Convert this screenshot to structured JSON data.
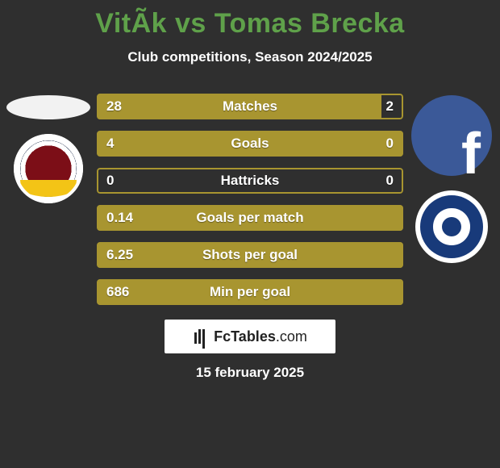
{
  "colors": {
    "background": "#2f2f2f",
    "title": "#5fa14a",
    "text": "#ffffff",
    "bar_fill": "#a89530",
    "bar_empty_border": "#a89530",
    "bar_border_width": 2,
    "brand_bg": "#ffffff",
    "brand_text": "#222222",
    "fb": "#3b5998"
  },
  "title": "VitÃ­k vs Tomas Brecka",
  "subtitle": "Club competitions, Season 2024/2025",
  "left_badge": "sparta",
  "right_badge": "slovacko",
  "stats": {
    "rows": [
      {
        "label": "Matches",
        "left": "28",
        "right": "2",
        "fill_pct": 93
      },
      {
        "label": "Goals",
        "left": "4",
        "right": "0",
        "fill_pct": 100
      },
      {
        "label": "Hattricks",
        "left": "0",
        "right": "0",
        "fill_pct": 0
      },
      {
        "label": "Goals per match",
        "left": "0.14",
        "right": "",
        "fill_pct": 100
      },
      {
        "label": "Shots per goal",
        "left": "6.25",
        "right": "",
        "fill_pct": 100
      },
      {
        "label": "Min per goal",
        "left": "686",
        "right": "",
        "fill_pct": 100
      }
    ],
    "label_fontsize": 17,
    "value_fontsize": 17
  },
  "brand": {
    "bold": "FcTables",
    "thin": ".com"
  },
  "date": "15 february 2025"
}
